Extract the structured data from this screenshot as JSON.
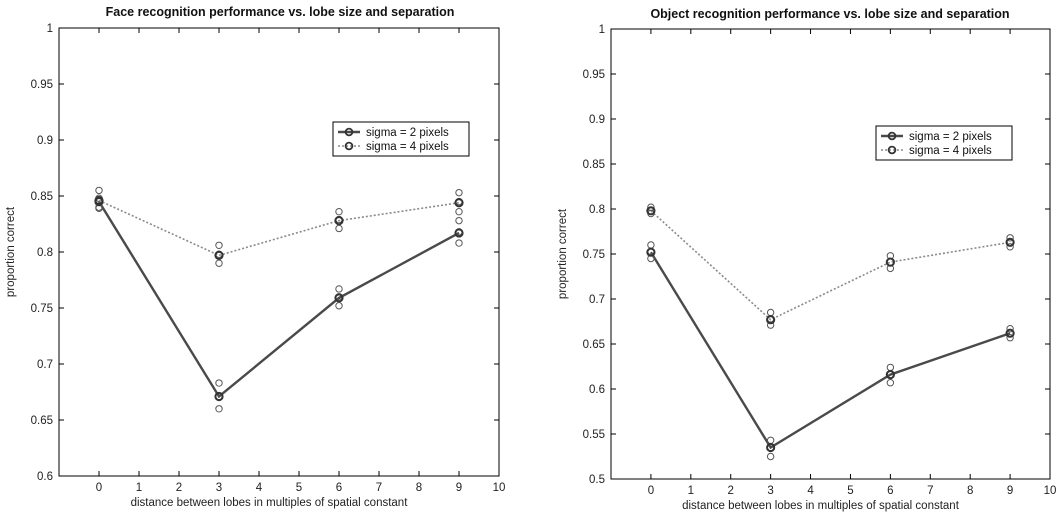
{
  "chart_data": [
    {
      "type": "line",
      "title": "Face recognition performance vs. lobe size and separation",
      "xlabel": "distance between lobes in multiples of spatial constant",
      "ylabel": "proportion correct",
      "xlim": [
        -1,
        10
      ],
      "ylim": [
        0.6,
        1.0
      ],
      "xticks": [
        0,
        1,
        2,
        3,
        4,
        5,
        6,
        7,
        8,
        9,
        10
      ],
      "yticks": [
        0.6,
        0.65,
        0.7,
        0.75,
        0.8,
        0.85,
        0.9,
        0.95,
        1
      ],
      "ytick_labels": [
        "0.6",
        "0.65",
        "0.7",
        "0.75",
        "0.8",
        "0.85",
        "0.9",
        "0.95",
        "1"
      ],
      "legend_position": "upper-right",
      "x": [
        0,
        3,
        6,
        9
      ],
      "series": [
        {
          "name": "sigma = 2 pixels",
          "style": "solid",
          "values": [
            0.845,
            0.671,
            0.759,
            0.817
          ],
          "samples": [
            [
              0.839,
              0.845,
              0.848
            ],
            [
              0.66,
              0.671,
              0.683
            ],
            [
              0.752,
              0.76,
              0.767
            ],
            [
              0.808,
              0.818,
              0.828
            ]
          ]
        },
        {
          "name": "sigma = 4 pixels",
          "style": "dotted",
          "values": [
            0.846,
            0.797,
            0.828,
            0.844
          ],
          "samples": [
            [
              0.84,
              0.846,
              0.855
            ],
            [
              0.79,
              0.798,
              0.806
            ],
            [
              0.821,
              0.829,
              0.836
            ],
            [
              0.836,
              0.845,
              0.853
            ]
          ]
        }
      ],
      "grid": false
    },
    {
      "type": "line",
      "title": "Object recognition performance vs. lobe size and separation",
      "xlabel": "distance between lobes in multiples of spatial constant",
      "ylabel": "proportion correct",
      "xlim": [
        -1,
        10
      ],
      "ylim": [
        0.5,
        1.0
      ],
      "xticks": [
        0,
        1,
        2,
        3,
        4,
        5,
        6,
        7,
        8,
        9,
        10
      ],
      "yticks": [
        0.5,
        0.55,
        0.6,
        0.65,
        0.7,
        0.75,
        0.8,
        0.85,
        0.9,
        0.95,
        1
      ],
      "ytick_labels": [
        "0.5",
        "0.55",
        "0.6",
        "0.65",
        "0.7",
        "0.75",
        "0.8",
        "0.85",
        "0.9",
        "0.95",
        "1"
      ],
      "legend_position": "upper-right",
      "x": [
        0,
        3,
        6,
        9
      ],
      "series": [
        {
          "name": "sigma = 2 pixels",
          "style": "solid",
          "values": [
            0.752,
            0.535,
            0.616,
            0.662
          ],
          "samples": [
            [
              0.745,
              0.753,
              0.76
            ],
            [
              0.525,
              0.535,
              0.543
            ],
            [
              0.607,
              0.616,
              0.624
            ],
            [
              0.657,
              0.662,
              0.667
            ]
          ]
        },
        {
          "name": "sigma = 4 pixels",
          "style": "dotted",
          "values": [
            0.798,
            0.677,
            0.741,
            0.763
          ],
          "samples": [
            [
              0.795,
              0.798,
              0.802
            ],
            [
              0.671,
              0.678,
              0.685
            ],
            [
              0.734,
              0.741,
              0.748
            ],
            [
              0.758,
              0.763,
              0.768
            ]
          ]
        }
      ],
      "grid": false
    }
  ],
  "colors": {
    "solid_line": "#4a4a4a",
    "dotted_line": "#8a8a8a",
    "marker": "#555555",
    "axis": "#000000"
  }
}
